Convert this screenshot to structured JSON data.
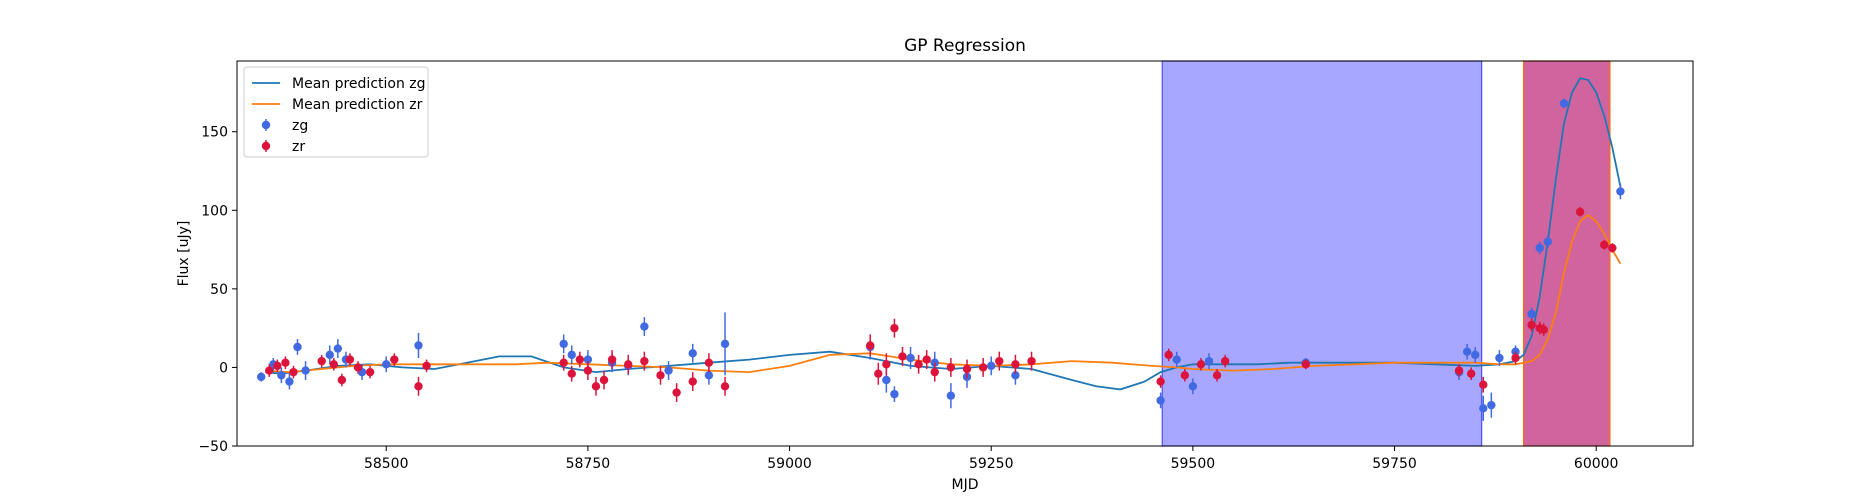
{
  "chart_data": {
    "type": "scatter",
    "title": "GP Regression",
    "xlabel": "MJD",
    "ylabel": "Flux [uJy]",
    "xlim": [
      58315,
      60120
    ],
    "ylim": [
      -50,
      195
    ],
    "xticks": [
      58500,
      58750,
      59000,
      59250,
      59500,
      59750,
      60000
    ],
    "yticks": [
      -50,
      0,
      50,
      100,
      150
    ],
    "grid": false,
    "legend_position": "top-left",
    "shaded_regions": [
      {
        "x_start": 59462,
        "x_end": 59858,
        "color": "#5050ff",
        "edge": "#5050ff",
        "opacity": 0.5
      },
      {
        "x_start": 59910,
        "x_end": 60017,
        "color": "#b5116a",
        "edge": "#ff6a00",
        "opacity": 0.65
      }
    ],
    "series": [
      {
        "name": "Mean prediction zg",
        "kind": "line",
        "color": "#1f77b4",
        "x": [
          58350,
          58370,
          58400,
          58440,
          58480,
          58520,
          58560,
          58600,
          58640,
          58680,
          58720,
          58760,
          58800,
          58850,
          58900,
          58950,
          59000,
          59050,
          59100,
          59150,
          59200,
          59250,
          59300,
          59350,
          59380,
          59410,
          59440,
          59460,
          59480,
          59500,
          59540,
          59580,
          59620,
          59660,
          59700,
          59750,
          59800,
          59850,
          59880,
          59900,
          59910,
          59920,
          59930,
          59940,
          59950,
          59960,
          59970,
          59980,
          59990,
          60000,
          60010,
          60020,
          60030
        ],
        "y": [
          -3,
          -4,
          -2,
          1,
          2,
          0,
          -1,
          3,
          7,
          7,
          0,
          -3,
          -1,
          1,
          3,
          5,
          8,
          10,
          6,
          1,
          -1,
          1,
          -1,
          -8,
          -12,
          -14,
          -9,
          -3,
          0,
          2,
          2,
          2,
          3,
          3,
          3,
          3,
          2,
          1,
          2,
          4,
          8,
          20,
          45,
          80,
          120,
          155,
          175,
          184,
          183,
          175,
          160,
          140,
          115
        ]
      },
      {
        "name": "Mean prediction zr",
        "kind": "line",
        "color": "#ff7f0e",
        "x": [
          58350,
          58380,
          58420,
          58460,
          58500,
          58540,
          58580,
          58620,
          58660,
          58700,
          58750,
          58800,
          58850,
          58900,
          58950,
          59000,
          59050,
          59100,
          59150,
          59200,
          59250,
          59300,
          59350,
          59400,
          59450,
          59480,
          59500,
          59550,
          59600,
          59650,
          59700,
          59750,
          59800,
          59850,
          59880,
          59900,
          59910,
          59920,
          59930,
          59940,
          59950,
          59960,
          59970,
          59980,
          59990,
          60000,
          60010,
          60020,
          60030
        ],
        "y": [
          -2,
          -3,
          -1,
          1,
          2,
          2,
          2,
          2,
          2,
          3,
          2,
          1,
          0,
          -2,
          -3,
          1,
          8,
          9,
          5,
          2,
          1,
          2,
          4,
          3,
          1,
          0,
          -1,
          -2,
          -1,
          1,
          2,
          3,
          3,
          3,
          2,
          2,
          3,
          4,
          8,
          18,
          35,
          60,
          80,
          93,
          97,
          93,
          85,
          75,
          66
        ]
      },
      {
        "name": "zg",
        "kind": "points",
        "color": "#4169e1",
        "x": [
          58345,
          58360,
          58370,
          58380,
          58390,
          58400,
          58430,
          58440,
          58450,
          58470,
          58500,
          58540,
          58720,
          58730,
          58750,
          58780,
          58800,
          58820,
          58850,
          58880,
          58900,
          58920,
          59100,
          59120,
          59130,
          59150,
          59180,
          59200,
          59220,
          59250,
          59280,
          59460,
          59480,
          59500,
          59520,
          59640,
          59830,
          59840,
          59850,
          59860,
          59870,
          59880,
          59900,
          59920,
          59930,
          59940,
          59960,
          60030
        ],
        "y": [
          -6,
          2,
          -5,
          -9,
          13,
          -2,
          8,
          12,
          5,
          -3,
          2,
          14,
          15,
          8,
          5,
          3,
          1,
          26,
          -2,
          9,
          -5,
          15,
          13,
          -8,
          -17,
          6,
          3,
          -18,
          -6,
          1,
          -5,
          -21,
          5,
          -12,
          4,
          3,
          -3,
          10,
          8,
          -26,
          -24,
          6,
          10,
          34,
          76,
          80,
          168,
          112
        ],
        "err": [
          3,
          4,
          5,
          5,
          5,
          6,
          6,
          6,
          5,
          5,
          5,
          8,
          6,
          6,
          6,
          6,
          6,
          6,
          6,
          6,
          6,
          20,
          8,
          8,
          5,
          7,
          7,
          8,
          7,
          6,
          6,
          5,
          5,
          5,
          5,
          3,
          5,
          5,
          5,
          8,
          8,
          5,
          4,
          4,
          4,
          4,
          3,
          5
        ]
      },
      {
        "name": "zr",
        "kind": "points",
        "color": "#dc143c",
        "x": [
          58355,
          58365,
          58375,
          58385,
          58420,
          58435,
          58445,
          58455,
          58465,
          58480,
          58510,
          58540,
          58550,
          58720,
          58730,
          58740,
          58750,
          58760,
          58770,
          58780,
          58800,
          58820,
          58840,
          58860,
          58880,
          58900,
          58920,
          59100,
          59110,
          59120,
          59130,
          59140,
          59160,
          59170,
          59180,
          59200,
          59220,
          59240,
          59260,
          59280,
          59300,
          59460,
          59470,
          59490,
          59510,
          59530,
          59540,
          59640,
          59830,
          59845,
          59860,
          59900,
          59920,
          59930,
          59935,
          59980,
          60010,
          60020
        ],
        "y": [
          -2,
          1,
          3,
          -3,
          4,
          2,
          -8,
          5,
          0,
          -3,
          5,
          -12,
          1,
          3,
          -4,
          5,
          -2,
          -12,
          -8,
          5,
          2,
          4,
          -5,
          -16,
          -9,
          3,
          -12,
          14,
          -4,
          2,
          25,
          7,
          2,
          5,
          -3,
          0,
          -1,
          0,
          4,
          2,
          4,
          -9,
          8,
          -5,
          2,
          -5,
          4,
          2,
          -2,
          -4,
          -11,
          6,
          27,
          25,
          24,
          99,
          78,
          76
        ],
        "err": [
          4,
          4,
          4,
          4,
          4,
          4,
          4,
          4,
          4,
          4,
          4,
          6,
          4,
          5,
          5,
          5,
          6,
          6,
          6,
          6,
          6,
          6,
          6,
          6,
          6,
          6,
          6,
          7,
          7,
          7,
          6,
          6,
          6,
          6,
          6,
          6,
          6,
          6,
          6,
          6,
          6,
          4,
          4,
          4,
          4,
          4,
          4,
          3,
          4,
          4,
          5,
          4,
          4,
          4,
          4,
          3,
          3,
          3
        ]
      }
    ]
  }
}
